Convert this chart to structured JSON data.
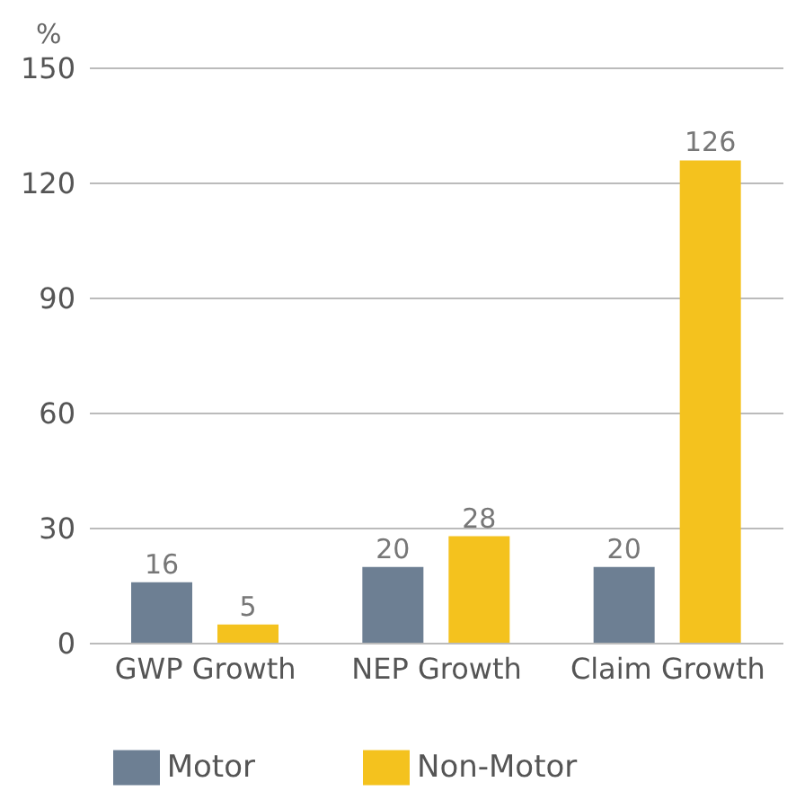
{
  "chart_data": {
    "type": "bar",
    "ylabel": "%",
    "categories": [
      "GWP Growth",
      "NEP Growth",
      "Claim Growth"
    ],
    "series": [
      {
        "name": "Motor",
        "color": "#6d7f93",
        "values": [
          16,
          20,
          20
        ]
      },
      {
        "name": "Non-Motor",
        "color": "#f4c21e",
        "values": [
          5,
          28,
          126
        ]
      }
    ],
    "ylim": [
      0,
      150
    ],
    "yticks": [
      0,
      30,
      60,
      90,
      120,
      150
    ],
    "grid": "y",
    "legend": "bottom",
    "data_labels": true
  }
}
